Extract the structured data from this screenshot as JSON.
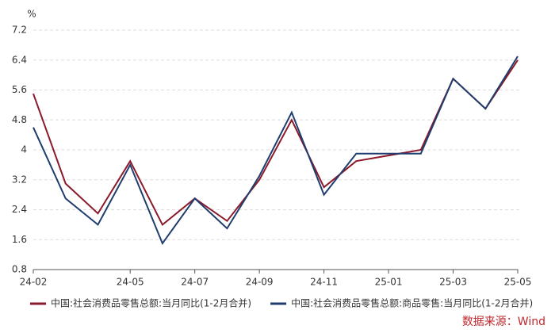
{
  "chart_data": {
    "type": "line",
    "y_unit": "%",
    "x": [
      "24-02",
      "24-03",
      "24-04",
      "24-05",
      "24-06",
      "24-07",
      "24-08",
      "24-09",
      "24-10",
      "24-11",
      "24-12",
      "25-02",
      "25-03",
      "25-04",
      "25-05"
    ],
    "xlim": [
      "24-02",
      "25-05"
    ],
    "xticks": [
      "24-02",
      "24-05",
      "24-07",
      "24-09",
      "24-11",
      "25-01",
      "25-03",
      "25-05"
    ],
    "ylim": [
      0.8,
      7.2
    ],
    "yticks": [
      0.8,
      1.6,
      2.4,
      3.2,
      4,
      4.8,
      5.6,
      6.4,
      7.2
    ],
    "grid": true,
    "legend": "bottom",
    "series": [
      {
        "name": "中国:社会消费品零售总额:当月同比(1-2月合并)",
        "color": "#8b1a2b",
        "values": [
          5.5,
          3.1,
          2.3,
          3.7,
          2.0,
          2.7,
          2.1,
          3.2,
          4.8,
          3.0,
          3.7,
          4.0,
          5.9,
          5.1,
          6.4
        ]
      },
      {
        "name": "中国:社会消费品零售总额:商品零售:当月同比(1-2月合并)",
        "color": "#1f3d6e",
        "values": [
          4.6,
          2.7,
          2.0,
          3.6,
          1.5,
          2.7,
          1.9,
          3.3,
          5.0,
          2.8,
          3.9,
          3.9,
          5.9,
          5.1,
          6.5
        ]
      }
    ],
    "source": "数据来源：Wind"
  }
}
